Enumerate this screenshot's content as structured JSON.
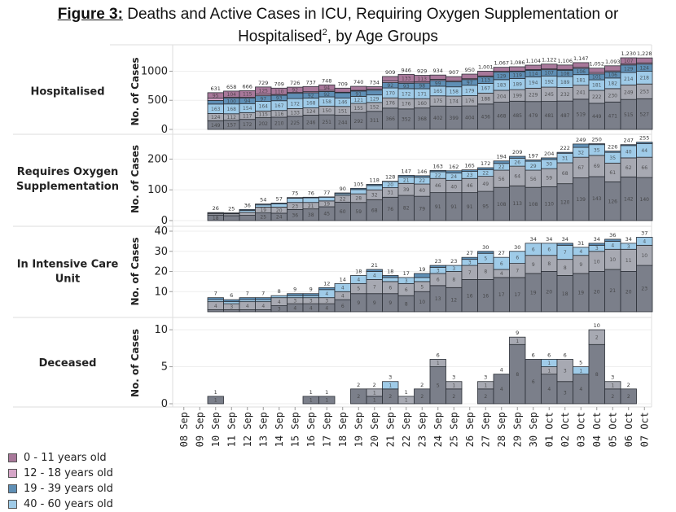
{
  "title": {
    "lead": "Figure 3:",
    "text": " Deaths and Active Cases in ICU, Requiring Oxygen Supplementation or",
    "line2_pre": "Hospitalised",
    "line2_sup": "2",
    "line2_post": ", by Age Groups"
  },
  "legend": [
    {
      "label": "0 - 11 years old",
      "color": "#a8789a"
    },
    {
      "label": "12 - 18 years old",
      "color": "#d6a6c8"
    },
    {
      "label": "19 - 39 years old",
      "color": "#5f8fb5"
    },
    {
      "label": "40 - 60 years old",
      "color": "#9fcbe8"
    }
  ],
  "chart_data": {
    "type": "bar",
    "stacked": true,
    "title": "Deaths and Active Cases in ICU, Requiring Oxygen Supplementation or Hospitalised, by Age Groups",
    "categories": [
      "08 Sep",
      "09 Sep",
      "10 Sep",
      "11 Sep",
      "12 Sep",
      "13 Sep",
      "14 Sep",
      "15 Sep",
      "16 Sep",
      "17 Sep",
      "18 Sep",
      "19 Sep",
      "20 Sep",
      "21 Sep",
      "22 Sep",
      "23 Sep",
      "24 Sep",
      "25 Sep",
      "26 Sep",
      "27 Sep",
      "28 Sep",
      "29 Sep",
      "30 Sep",
      "01 Oct",
      "02 Oct",
      "03 Oct",
      "04 Oct",
      "05 Oct",
      "06 Oct",
      "07 Oct"
    ],
    "segment_order_bottom_to_top": [
      "seg_dark",
      "seg_grey",
      "40 - 60 years old",
      "19 - 39 years old",
      "12 - 18 years old",
      "0 - 11 years old"
    ],
    "segment_colors": [
      "#7b7f8a",
      "#a7a9b2",
      "#9fcbe8",
      "#5f8fb5",
      "#d6a6c8",
      "#a8789a"
    ],
    "panels": [
      {
        "name": "Hospitalised",
        "ylabel": "No. of Cases",
        "yticks": [
          0,
          500,
          1000
        ],
        "ylim": [
          0,
          1300
        ],
        "totals": [
          null,
          null,
          631,
          658,
          666,
          729,
          709,
          726,
          737,
          748,
          709,
          740,
          734,
          909,
          946,
          929,
          934,
          907,
          950,
          1001,
          1067,
          1086,
          1104,
          1122,
          1106,
          1147,
          1052,
          1093,
          1230,
          1228
        ],
        "segments": [
          [
            null,
            null,
            149,
            157,
            172,
            202,
            210,
            225,
            246,
            251,
            244,
            292,
            311,
            366,
            352,
            368,
            402,
            399,
            404,
            436,
            468,
            485,
            479,
            481,
            487,
            519,
            449,
            471,
            515,
            527
          ],
          [
            null,
            null,
            124,
            112,
            117,
            115,
            116,
            133,
            124,
            150,
            151,
            155,
            152,
            176,
            176,
            160,
            175,
            174,
            176,
            188,
            204,
            199,
            229,
            245,
            232,
            241,
            222,
            230,
            249,
            253
          ],
          [
            null,
            null,
            163,
            168,
            154,
            164,
            167,
            172,
            168,
            158,
            146,
            121,
            129,
            170,
            172,
            171,
            165,
            158,
            179,
            167,
            183,
            189,
            194,
            192,
            189,
            181,
            181,
            182,
            214,
            218
          ],
          [
            null,
            null,
            61,
            100,
            94,
            97,
            93,
            90,
            92,
            92,
            87,
            91,
            82,
            92,
            93,
            98,
            99,
            89,
            97,
            113,
            129,
            119,
            114,
            107,
            108,
            106,
            101,
            106,
            129,
            124
          ],
          [
            null,
            null,
            39,
            17,
            14,
            26,
            13,
            14,
            18,
            20,
            11,
            12,
            17,
            28,
            20,
            19,
            19,
            17,
            15,
            15,
            13,
            10,
            12,
            14,
            14,
            19,
            25,
            16,
            16,
            21
          ],
          [
            null,
            null,
            95,
            104,
            115,
            125,
            110,
            92,
            89,
            94,
            70,
            69,
            43,
            77,
            133,
            113,
            74,
            70,
            79,
            82,
            70,
            74,
            76,
            83,
            76,
            81,
            74,
            88,
            107,
            85
          ]
        ]
      },
      {
        "name": "Requires Oxygen Supplementation",
        "ylabel": "No. of Cases",
        "yticks": [
          0,
          100,
          200
        ],
        "ylim": [
          0,
          270
        ],
        "totals": [
          null,
          null,
          26,
          25,
          36,
          54,
          57,
          75,
          76,
          77,
          90,
          105,
          118,
          128,
          147,
          146,
          163,
          162,
          165,
          172,
          194,
          209,
          197,
          204,
          222,
          249,
          250,
          226,
          247,
          255
        ],
        "segments": [
          [
            null,
            null,
            18,
            16,
            17,
            25,
            24,
            36,
            38,
            45,
            60,
            59,
            68,
            76,
            82,
            79,
            91,
            91,
            91,
            95,
            108,
            113,
            108,
            110,
            120,
            139,
            143,
            126,
            142,
            140
          ],
          [
            null,
            null,
            5,
            6,
            10,
            19,
            20,
            23,
            21,
            19,
            22,
            28,
            32,
            31,
            39,
            40,
            46,
            40,
            46,
            49,
            56,
            64,
            56,
            59,
            68,
            67,
            69,
            61,
            62,
            66
          ],
          [
            null,
            null,
            2,
            2,
            6,
            7,
            10,
            14,
            15,
            12,
            5,
            14,
            14,
            20,
            21,
            22,
            22,
            24,
            23,
            22,
            22,
            26,
            29,
            30,
            31,
            32,
            35,
            35,
            40,
            44
          ],
          [
            null,
            null,
            1,
            1,
            3,
            3,
            3,
            2,
            2,
            1,
            3,
            4,
            4,
            1,
            5,
            5,
            4,
            7,
            5,
            6,
            8,
            6,
            4,
            5,
            3,
            11,
            3,
            4,
            3,
            5
          ]
        ]
      },
      {
        "name": "In Intensive Care Unit",
        "ylabel": "No. of Cases",
        "yticks": [
          10,
          20,
          30,
          40
        ],
        "ylim": [
          0,
          40
        ],
        "totals": [
          null,
          null,
          7,
          6,
          7,
          7,
          8,
          9,
          9,
          12,
          14,
          18,
          21,
          18,
          17,
          19,
          23,
          23,
          27,
          30,
          27,
          30,
          34,
          34,
          34,
          31,
          34,
          36,
          34,
          37
        ],
        "segments": [
          [
            null,
            null,
            1,
            1,
            1,
            1,
            3,
            4,
            4,
            4,
            6,
            9,
            9,
            9,
            8,
            10,
            13,
            12,
            16,
            16,
            17,
            17,
            19,
            20,
            18,
            19,
            20,
            21,
            20,
            23
          ],
          [
            null,
            null,
            4,
            3,
            4,
            4,
            4,
            3,
            3,
            3,
            4,
            5,
            7,
            6,
            6,
            5,
            6,
            8,
            7,
            8,
            4,
            7,
            9,
            8,
            8,
            9,
            10,
            10,
            11,
            10
          ],
          [
            null,
            null,
            1,
            1,
            1,
            1,
            1,
            1,
            1,
            4,
            4,
            4,
            4,
            2,
            3,
            2,
            3,
            3,
            3,
            5,
            6,
            6,
            6,
            6,
            7,
            4,
            3,
            4,
            3,
            4
          ],
          [
            null,
            null,
            1,
            1,
            1,
            1,
            0,
            1,
            1,
            1,
            0,
            0,
            1,
            1,
            0,
            2,
            1,
            0,
            1,
            1,
            0,
            0,
            0,
            0,
            1,
            0,
            1,
            1,
            0,
            0
          ]
        ]
      },
      {
        "name": "Deceased",
        "ylabel": "No. of Cases",
        "yticks": [
          0,
          5,
          10
        ],
        "ylim": [
          0,
          11
        ],
        "totals": [
          null,
          null,
          1,
          null,
          null,
          null,
          null,
          null,
          1,
          1,
          null,
          2,
          2,
          3,
          1,
          2,
          6,
          3,
          null,
          3,
          4,
          9,
          6,
          6,
          6,
          5,
          10,
          3,
          2,
          null
        ],
        "segments": [
          [
            null,
            null,
            1,
            null,
            null,
            null,
            null,
            null,
            1,
            1,
            null,
            2,
            1,
            2,
            0,
            2,
            5,
            2,
            null,
            2,
            4,
            8,
            6,
            4,
            3,
            4,
            8,
            2,
            2,
            null
          ],
          [
            null,
            null,
            0,
            null,
            null,
            null,
            null,
            null,
            0,
            0,
            null,
            0,
            1,
            0,
            1,
            0,
            1,
            1,
            null,
            1,
            0,
            1,
            0,
            1,
            3,
            0,
            2,
            1,
            0,
            null
          ],
          [
            null,
            null,
            0,
            null,
            null,
            null,
            null,
            null,
            0,
            0,
            null,
            0,
            0,
            1,
            0,
            0,
            0,
            0,
            null,
            0,
            0,
            0,
            0,
            1,
            0,
            1,
            0,
            0,
            0,
            null
          ]
        ]
      }
    ]
  }
}
